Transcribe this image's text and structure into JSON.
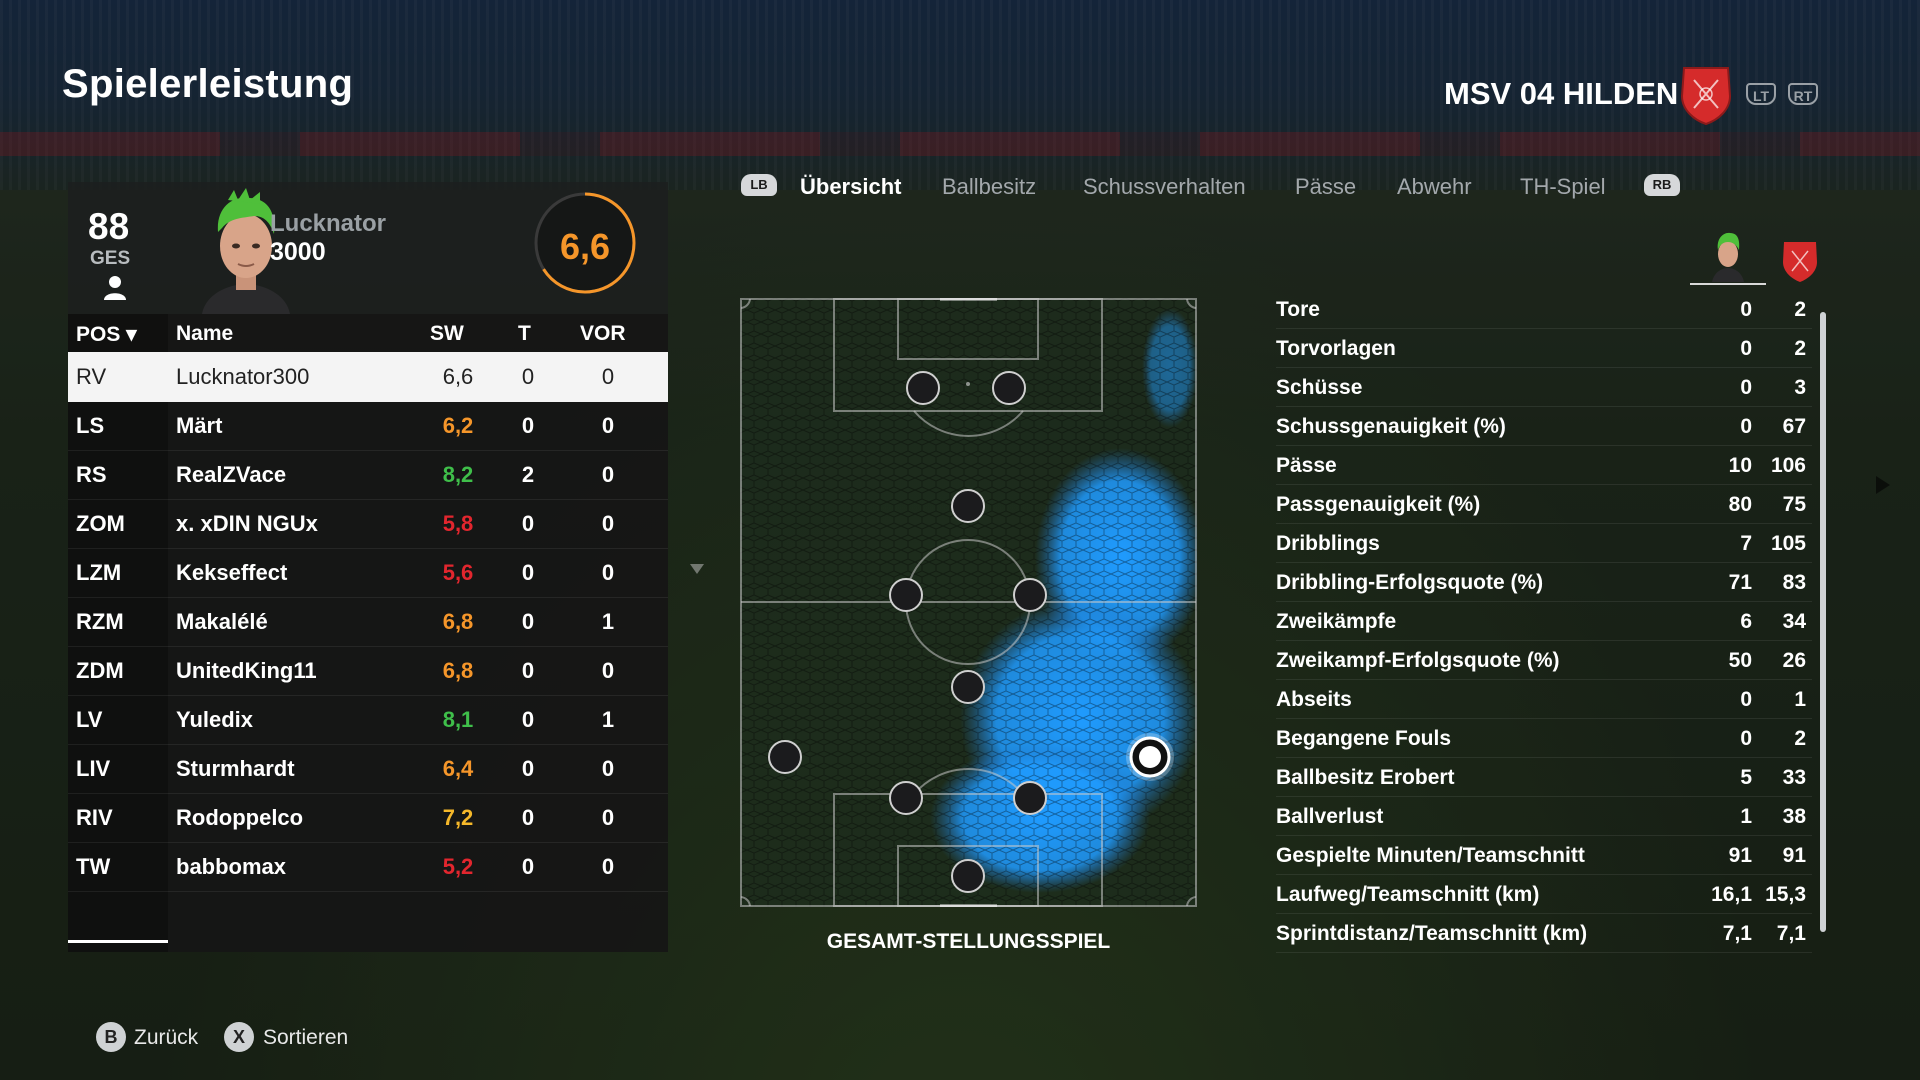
{
  "header": {
    "title": "Spielerleistung",
    "team_name": "MSV 04 HILDEN",
    "lt_label": "LT",
    "rt_label": "RT",
    "team_color": "#d52b2b"
  },
  "player": {
    "overall": "88",
    "overall_label": "GES",
    "name_line1": "Lucknator",
    "name_line2": "3000",
    "rating": "6,6",
    "rating_color": "#f5962a"
  },
  "table": {
    "headers": {
      "pos": "POS ▾",
      "name": "Name",
      "sw": "SW",
      "t": "T",
      "vor": "VOR"
    },
    "rows": [
      {
        "pos": "RV",
        "name": "Lucknator300",
        "sw": "6,6",
        "t": "0",
        "vor": "0",
        "color": "#222222"
      },
      {
        "pos": "LS",
        "name": "Märt",
        "sw": "6,2",
        "t": "0",
        "vor": "0",
        "color": "#f5962a"
      },
      {
        "pos": "RS",
        "name": "RealZVace",
        "sw": "8,2",
        "t": "2",
        "vor": "0",
        "color": "#3fbf4a"
      },
      {
        "pos": "ZOM",
        "name": "x. xDIN NGUx",
        "sw": "5,8",
        "t": "0",
        "vor": "0",
        "color": "#e2262e"
      },
      {
        "pos": "LZM",
        "name": "Kekseffect",
        "sw": "5,6",
        "t": "0",
        "vor": "0",
        "color": "#e2262e"
      },
      {
        "pos": "RZM",
        "name": "Makalélé",
        "sw": "6,8",
        "t": "0",
        "vor": "1",
        "color": "#f5962a"
      },
      {
        "pos": "ZDM",
        "name": "UnitedKing11",
        "sw": "6,8",
        "t": "0",
        "vor": "0",
        "color": "#f5962a"
      },
      {
        "pos": "LV",
        "name": "Yuledix",
        "sw": "8,1",
        "t": "0",
        "vor": "1",
        "color": "#3fbf4a"
      },
      {
        "pos": "LIV",
        "name": "Sturmhardt",
        "sw": "6,4",
        "t": "0",
        "vor": "0",
        "color": "#f5962a"
      },
      {
        "pos": "RIV",
        "name": "Rodoppelco",
        "sw": "7,2",
        "t": "0",
        "vor": "0",
        "color": "#f5b82a"
      },
      {
        "pos": "TW",
        "name": "babbomax",
        "sw": "5,2",
        "t": "0",
        "vor": "0",
        "color": "#e2262e"
      }
    ]
  },
  "tabs": {
    "lb": "LB",
    "rb": "RB",
    "items": [
      "Übersicht",
      "Ballbesitz",
      "Schussverhalten",
      "Pässe",
      "Abwehr",
      "TH-Spiel"
    ]
  },
  "pitch": {
    "caption": "GESAMT-STELLUNGSSPIEL",
    "heatmap_color": "#1f9bff"
  },
  "stats": [
    {
      "label": "Tore",
      "player": "0",
      "team": "2"
    },
    {
      "label": "Torvorlagen",
      "player": "0",
      "team": "2"
    },
    {
      "label": "Schüsse",
      "player": "0",
      "team": "3"
    },
    {
      "label": "Schussgenauigkeit (%)",
      "player": "0",
      "team": "67"
    },
    {
      "label": "Pässe",
      "player": "10",
      "team": "106"
    },
    {
      "label": "Passgenauigkeit (%)",
      "player": "80",
      "team": "75"
    },
    {
      "label": "Dribblings",
      "player": "7",
      "team": "105"
    },
    {
      "label": "Dribbling-Erfolgsquote (%)",
      "player": "71",
      "team": "83"
    },
    {
      "label": "Zweikämpfe",
      "player": "6",
      "team": "34"
    },
    {
      "label": "Zweikampf-Erfolgsquote (%)",
      "player": "50",
      "team": "26"
    },
    {
      "label": "Abseits",
      "player": "0",
      "team": "1"
    },
    {
      "label": "Begangene Fouls",
      "player": "0",
      "team": "2"
    },
    {
      "label": "Ballbesitz Erobert",
      "player": "5",
      "team": "33"
    },
    {
      "label": "Ballverlust",
      "player": "1",
      "team": "38"
    },
    {
      "label": "Gespielte Minuten/Teamschnitt",
      "player": "91",
      "team": "91"
    },
    {
      "label": "Laufweg/Teamschnitt (km)",
      "player": "16,1",
      "team": "15,3"
    },
    {
      "label": "Sprintdistanz/Teamschnitt (km)",
      "player": "7,1",
      "team": "7,1"
    }
  ],
  "footer": {
    "back_key": "B",
    "back_label": "Zurück",
    "sort_key": "X",
    "sort_label": "Sortieren"
  }
}
